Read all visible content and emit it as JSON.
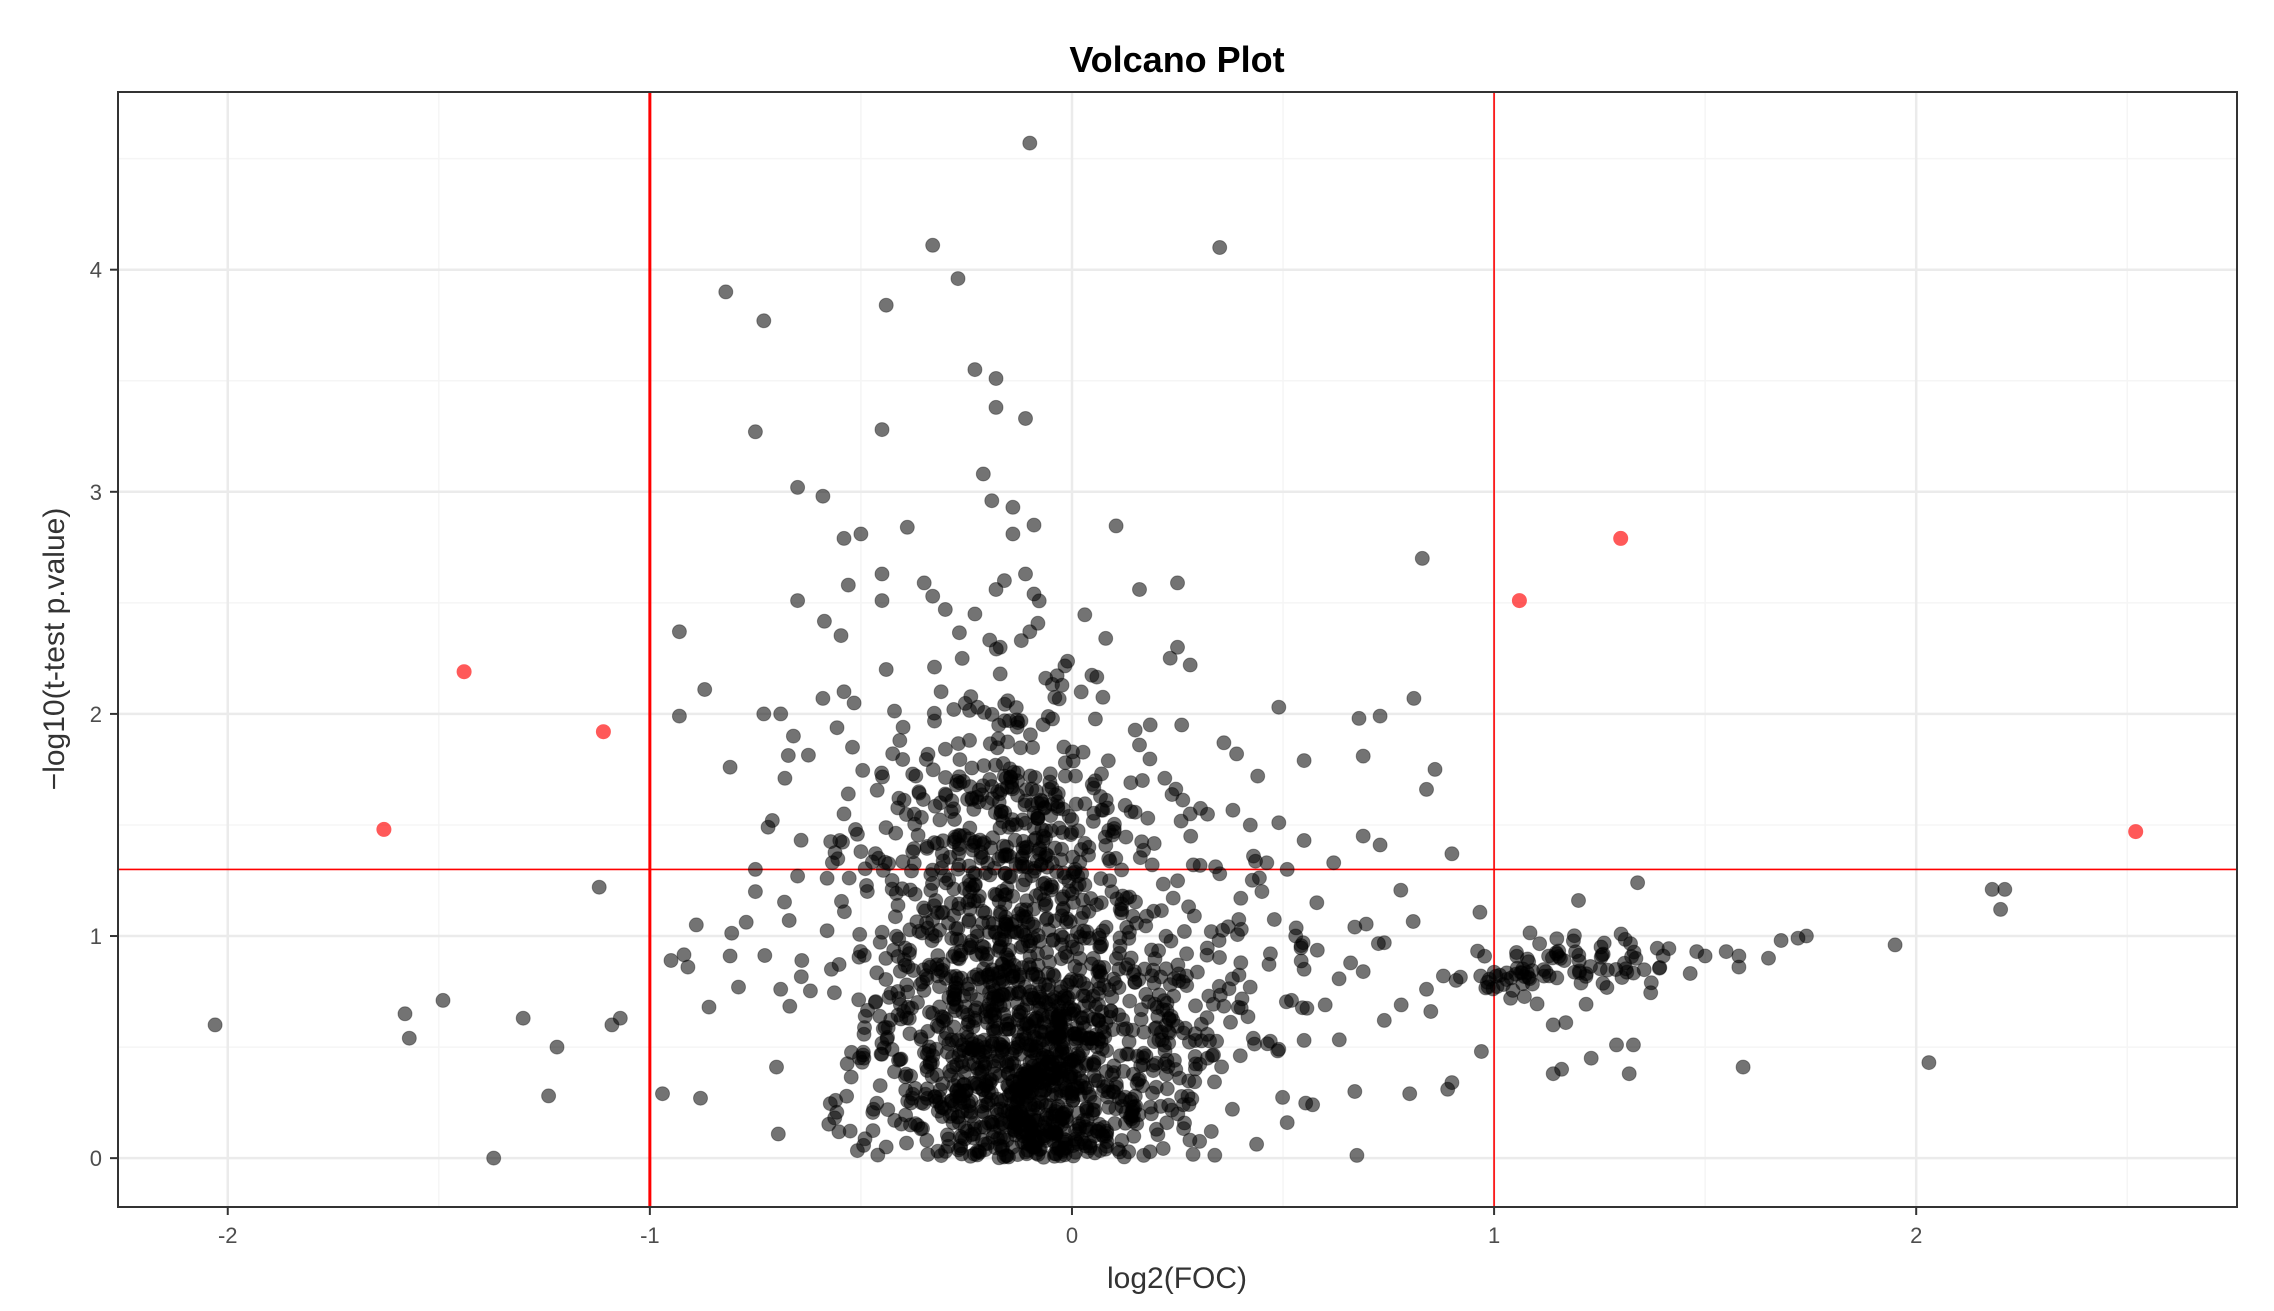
{
  "chart_data": {
    "type": "scatter",
    "title": "Volcano Plot",
    "xlabel": "log2(FOC)",
    "ylabel": "−log10(t-test p.value)",
    "xlim": [
      -2.26,
      2.76
    ],
    "ylim": [
      -0.22,
      4.8
    ],
    "x_ticks": [
      -2,
      -1,
      0,
      1,
      2
    ],
    "y_ticks": [
      0,
      1,
      2,
      3,
      4
    ],
    "grid": true,
    "legend": "none",
    "thresholds": {
      "log2fc": [
        -1,
        1
      ],
      "neg_log10_p": 1.3,
      "color": "#ff0000"
    },
    "colors": {
      "nonsignificant": "#000000",
      "significant": "#ff0000",
      "grid_major": "#ebebeb",
      "grid_minor": "#f5f5f5",
      "panel_border": "#333333"
    },
    "significant_points": [
      {
        "x": -1.63,
        "y": 1.48
      },
      {
        "x": -1.44,
        "y": 2.19
      },
      {
        "x": -1.11,
        "y": 1.92
      },
      {
        "x": 1.06,
        "y": 2.51
      },
      {
        "x": 1.3,
        "y": 2.79
      },
      {
        "x": 2.52,
        "y": 1.47
      }
    ],
    "points": [
      {
        "x": -0.1,
        "y": 4.57
      },
      {
        "x": -0.33,
        "y": 4.11
      },
      {
        "x": 0.35,
        "y": 4.1
      },
      {
        "x": -0.27,
        "y": 3.96
      },
      {
        "x": -0.82,
        "y": 3.9
      },
      {
        "x": -0.44,
        "y": 3.84
      },
      {
        "x": -0.73,
        "y": 3.77
      },
      {
        "x": -0.23,
        "y": 3.55
      },
      {
        "x": -0.18,
        "y": 3.51
      },
      {
        "x": -0.18,
        "y": 3.38
      },
      {
        "x": -0.11,
        "y": 3.33
      },
      {
        "x": -0.75,
        "y": 3.27
      },
      {
        "x": -0.45,
        "y": 3.28
      },
      {
        "x": -0.21,
        "y": 3.08
      },
      {
        "x": -0.65,
        "y": 3.02
      },
      {
        "x": -0.59,
        "y": 2.98
      },
      {
        "x": -0.19,
        "y": 2.96
      },
      {
        "x": -0.14,
        "y": 2.93
      },
      {
        "x": -0.09,
        "y": 2.85
      },
      {
        "x": -0.39,
        "y": 2.84
      },
      {
        "x": -0.5,
        "y": 2.81
      },
      {
        "x": -0.54,
        "y": 2.79
      },
      {
        "x": -0.14,
        "y": 2.81
      },
      {
        "x": 0.83,
        "y": 2.7
      },
      {
        "x": -0.45,
        "y": 2.63
      },
      {
        "x": -0.16,
        "y": 2.6
      },
      {
        "x": -0.11,
        "y": 2.63
      },
      {
        "x": 0.25,
        "y": 2.59
      },
      {
        "x": -0.53,
        "y": 2.58
      },
      {
        "x": -0.35,
        "y": 2.59
      },
      {
        "x": 0.16,
        "y": 2.56
      },
      {
        "x": -0.18,
        "y": 2.56
      },
      {
        "x": -0.09,
        "y": 2.54
      },
      {
        "x": -0.33,
        "y": 2.53
      },
      {
        "x": -0.65,
        "y": 2.51
      },
      {
        "x": -0.45,
        "y": 2.51
      },
      {
        "x": -0.3,
        "y": 2.47
      },
      {
        "x": -0.23,
        "y": 2.45
      },
      {
        "x": -0.93,
        "y": 2.37
      },
      {
        "x": -0.1,
        "y": 2.37
      },
      {
        "x": 0.08,
        "y": 2.34
      },
      {
        "x": -0.12,
        "y": 2.33
      },
      {
        "x": -0.17,
        "y": 2.3
      },
      {
        "x": 0.25,
        "y": 2.3
      },
      {
        "x": -0.26,
        "y": 2.25
      },
      {
        "x": 0.28,
        "y": 2.22
      },
      {
        "x": -0.44,
        "y": 2.2
      },
      {
        "x": -0.17,
        "y": 2.18
      },
      {
        "x": -0.87,
        "y": 2.11
      },
      {
        "x": -0.31,
        "y": 2.1
      },
      {
        "x": -0.54,
        "y": 2.1
      },
      {
        "x": 0.81,
        "y": 2.07
      },
      {
        "x": -0.59,
        "y": 2.07
      },
      {
        "x": 0.49,
        "y": 2.03
      },
      {
        "x": -0.28,
        "y": 2.02
      },
      {
        "x": -0.69,
        "y": 2.0
      },
      {
        "x": -0.73,
        "y": 2.0
      },
      {
        "x": -0.93,
        "y": 1.99
      },
      {
        "x": 0.68,
        "y": 1.98
      },
      {
        "x": 0.73,
        "y": 1.99
      },
      {
        "x": 0.26,
        "y": 1.95
      },
      {
        "x": -0.4,
        "y": 1.94
      },
      {
        "x": -0.66,
        "y": 1.9
      },
      {
        "x": 0.36,
        "y": 1.87
      },
      {
        "x": 0.16,
        "y": 1.86
      },
      {
        "x": -0.52,
        "y": 1.85
      },
      {
        "x": 0.39,
        "y": 1.82
      },
      {
        "x": 0.69,
        "y": 1.81
      },
      {
        "x": 0.55,
        "y": 1.79
      },
      {
        "x": -0.81,
        "y": 1.76
      },
      {
        "x": 0.86,
        "y": 1.75
      },
      {
        "x": 0.07,
        "y": 1.73
      },
      {
        "x": -0.37,
        "y": 1.72
      },
      {
        "x": -0.68,
        "y": 1.71
      },
      {
        "x": 0.22,
        "y": 1.71
      },
      {
        "x": 0.44,
        "y": 1.72
      },
      {
        "x": 0.84,
        "y": 1.66
      },
      {
        "x": -0.53,
        "y": 1.64
      },
      {
        "x": -0.41,
        "y": 1.62
      },
      {
        "x": 0.14,
        "y": 1.56
      },
      {
        "x": 0.28,
        "y": 1.55
      },
      {
        "x": -0.54,
        "y": 1.55
      },
      {
        "x": -0.71,
        "y": 1.52
      },
      {
        "x": 0.49,
        "y": 1.51
      },
      {
        "x": -0.72,
        "y": 1.49
      },
      {
        "x": 0.1,
        "y": 1.47
      },
      {
        "x": 0.69,
        "y": 1.45
      },
      {
        "x": 0.55,
        "y": 1.43
      },
      {
        "x": -0.55,
        "y": 1.43
      },
      {
        "x": 0.73,
        "y": 1.41
      },
      {
        "x": 0.04,
        "y": 1.4
      },
      {
        "x": -0.5,
        "y": 1.38
      },
      {
        "x": 0.9,
        "y": 1.37
      },
      {
        "x": 0.43,
        "y": 1.36
      },
      {
        "x": 0.62,
        "y": 1.33
      },
      {
        "x": 0.19,
        "y": 1.32
      },
      {
        "x": -0.75,
        "y": 1.3
      },
      {
        "x": 0.51,
        "y": 1.3
      },
      {
        "x": 0.35,
        "y": 1.28
      },
      {
        "x": -0.65,
        "y": 1.27
      },
      {
        "x": -0.58,
        "y": 1.26
      },
      {
        "x": 1.34,
        "y": 1.24
      },
      {
        "x": -1.12,
        "y": 1.22
      },
      {
        "x": 0.45,
        "y": 1.2
      },
      {
        "x": -0.75,
        "y": 1.2
      },
      {
        "x": 0.12,
        "y": 1.18
      },
      {
        "x": 0.4,
        "y": 1.17
      },
      {
        "x": 1.2,
        "y": 1.16
      },
      {
        "x": 0.58,
        "y": 1.15
      },
      {
        "x": 2.18,
        "y": 1.21
      },
      {
        "x": 2.21,
        "y": 1.21
      },
      {
        "x": 2.2,
        "y": 1.12
      },
      {
        "x": 0.29,
        "y": 1.09
      },
      {
        "x": -0.67,
        "y": 1.07
      },
      {
        "x": -0.89,
        "y": 1.05
      },
      {
        "x": 0.67,
        "y": 1.04
      },
      {
        "x": 0.33,
        "y": 1.02
      },
      {
        "x": 0.53,
        "y": 1.0
      },
      {
        "x": 1.72,
        "y": 0.99
      },
      {
        "x": 1.74,
        "y": 1.0
      },
      {
        "x": 1.68,
        "y": 0.98
      },
      {
        "x": 1.95,
        "y": 0.96
      },
      {
        "x": 0.74,
        "y": 0.97
      },
      {
        "x": 1.48,
        "y": 0.93
      },
      {
        "x": 1.5,
        "y": 0.91
      },
      {
        "x": 1.55,
        "y": 0.93
      },
      {
        "x": 1.58,
        "y": 0.91
      },
      {
        "x": 1.65,
        "y": 0.9
      },
      {
        "x": 1.58,
        "y": 0.86
      },
      {
        "x": -0.81,
        "y": 0.91
      },
      {
        "x": -0.95,
        "y": 0.89
      },
      {
        "x": -0.91,
        "y": 0.86
      },
      {
        "x": -0.64,
        "y": 0.89
      },
      {
        "x": -0.57,
        "y": 0.85
      },
      {
        "x": 0.47,
        "y": 0.92
      },
      {
        "x": 0.4,
        "y": 0.88
      },
      {
        "x": 0.69,
        "y": 0.84
      },
      {
        "x": 0.55,
        "y": 0.85
      },
      {
        "x": 0.88,
        "y": 0.82
      },
      {
        "x": 0.91,
        "y": 0.8
      },
      {
        "x": 0.84,
        "y": 0.76
      },
      {
        "x": -0.79,
        "y": 0.77
      },
      {
        "x": -0.69,
        "y": 0.76
      },
      {
        "x": -1.49,
        "y": 0.71
      },
      {
        "x": 0.52,
        "y": 0.71
      },
      {
        "x": 0.6,
        "y": 0.69
      },
      {
        "x": 0.78,
        "y": 0.69
      },
      {
        "x": -0.86,
        "y": 0.68
      },
      {
        "x": -1.58,
        "y": 0.65
      },
      {
        "x": -1.3,
        "y": 0.63
      },
      {
        "x": -1.07,
        "y": 0.63
      },
      {
        "x": -1.09,
        "y": 0.6
      },
      {
        "x": -2.03,
        "y": 0.6
      },
      {
        "x": 0.74,
        "y": 0.62
      },
      {
        "x": 0.85,
        "y": 0.66
      },
      {
        "x": 1.17,
        "y": 0.61
      },
      {
        "x": 1.14,
        "y": 0.6
      },
      {
        "x": -1.57,
        "y": 0.54
      },
      {
        "x": -1.22,
        "y": 0.5
      },
      {
        "x": 0.49,
        "y": 0.49
      },
      {
        "x": 0.55,
        "y": 0.53
      },
      {
        "x": 0.97,
        "y": 0.48
      },
      {
        "x": 1.29,
        "y": 0.51
      },
      {
        "x": 1.33,
        "y": 0.51
      },
      {
        "x": 1.23,
        "y": 0.45
      },
      {
        "x": 2.03,
        "y": 0.43
      },
      {
        "x": 1.59,
        "y": 0.41
      },
      {
        "x": 1.16,
        "y": 0.4
      },
      {
        "x": 1.14,
        "y": 0.38
      },
      {
        "x": 1.32,
        "y": 0.38
      },
      {
        "x": -0.7,
        "y": 0.41
      },
      {
        "x": 0.9,
        "y": 0.34
      },
      {
        "x": 0.89,
        "y": 0.31
      },
      {
        "x": 0.8,
        "y": 0.29
      },
      {
        "x": 0.67,
        "y": 0.3
      },
      {
        "x": -1.24,
        "y": 0.28
      },
      {
        "x": -0.97,
        "y": 0.29
      },
      {
        "x": -0.88,
        "y": 0.27
      },
      {
        "x": -0.56,
        "y": 0.26
      },
      {
        "x": -0.47,
        "y": 0.22
      },
      {
        "x": 0.38,
        "y": 0.22
      },
      {
        "x": 0.57,
        "y": 0.24
      },
      {
        "x": 0.51,
        "y": 0.16
      },
      {
        "x": -1.37,
        "y": 0.0
      },
      {
        "x": -0.44,
        "y": 0.05
      },
      {
        "x": 0.33,
        "y": 0.12
      },
      {
        "x": -0.42,
        "y": 0.17
      },
      {
        "x": 0.2,
        "y": 0.13
      }
    ],
    "clusters": [
      {
        "cx": -0.16,
        "cy": 0.72,
        "sx": 0.16,
        "sy": 0.62,
        "n": 900
      },
      {
        "cx": -0.08,
        "cy": 0.32,
        "sx": 0.1,
        "sy": 0.24,
        "n": 320
      },
      {
        "cx": 0.14,
        "cy": 0.52,
        "sx": 0.13,
        "sy": 0.36,
        "n": 240
      },
      {
        "cx": -0.15,
        "cy": 1.45,
        "sx": 0.12,
        "sy": 0.4,
        "n": 170
      },
      {
        "cx": -0.38,
        "cy": 1.05,
        "sx": 0.18,
        "sy": 0.55,
        "n": 110
      },
      {
        "cx": 0.22,
        "cy": 1.1,
        "sx": 0.14,
        "sy": 0.4,
        "n": 60
      },
      {
        "cx": 1.2,
        "cy": 0.88,
        "sx": 0.12,
        "sy": 0.08,
        "n": 70
      },
      {
        "cx": 1.05,
        "cy": 0.8,
        "sx": 0.04,
        "sy": 0.04,
        "n": 25
      },
      {
        "cx": 0.45,
        "cy": 0.7,
        "sx": 0.18,
        "sy": 0.35,
        "n": 45
      }
    ]
  }
}
